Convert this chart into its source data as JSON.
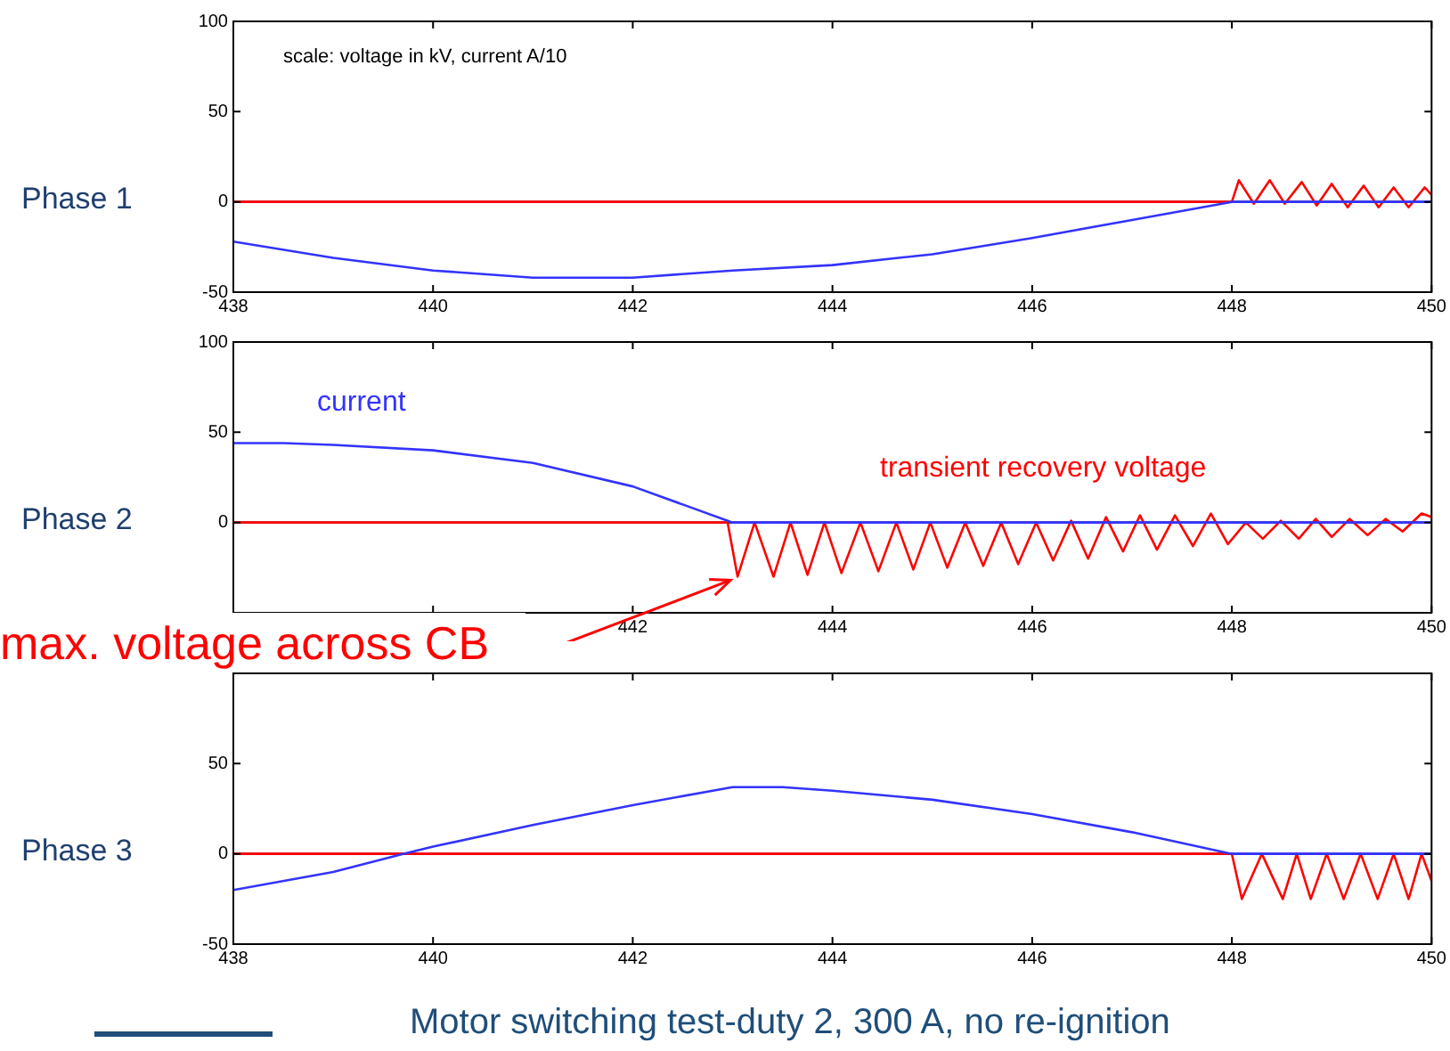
{
  "chart_data": [
    {
      "type": "line",
      "ylabel": "Phase 1",
      "xlim": [
        438,
        450
      ],
      "xticks": [
        438,
        440,
        442,
        444,
        446,
        448,
        450
      ],
      "ylim": [
        -50,
        100
      ],
      "yticks": [
        -50,
        0,
        50,
        100
      ],
      "legend": false,
      "grid": false,
      "marker": "none",
      "annotations": [
        "scale: voltage in kV, current A/10"
      ],
      "ref_lines": [
        {
          "axis": "y",
          "value": 0,
          "color": "#000000"
        }
      ],
      "series": [
        {
          "color": "#3333ff",
          "x": [
            438,
            439,
            440,
            441,
            442,
            443,
            444,
            445,
            446,
            447,
            448,
            450
          ],
          "values": [
            -22,
            -31,
            -38,
            -42,
            -42,
            -38,
            -35,
            -29,
            -20,
            -10,
            0,
            0
          ]
        },
        {
          "color": "#ff0000",
          "x": [
            438,
            448,
            448.07,
            448.22,
            448.38,
            448.53,
            448.7,
            448.85,
            449.0,
            449.16,
            449.32,
            449.47,
            449.62,
            449.77,
            449.93,
            450
          ],
          "values": [
            0,
            0,
            12,
            -1,
            12,
            -1,
            11,
            -2,
            10,
            -3,
            9,
            -3,
            8,
            -3,
            8,
            4
          ]
        }
      ]
    },
    {
      "type": "line",
      "ylabel": "Phase 2",
      "xlim": [
        438,
        450
      ],
      "xticks": [
        {
          "value": 438,
          "label": null
        },
        {
          "value": 440,
          "label": null
        },
        442,
        444,
        446,
        448,
        450
      ],
      "ylim": [
        -50,
        100
      ],
      "yticks": [
        {
          "value": -50,
          "label": null
        },
        0,
        50,
        100
      ],
      "legend": false,
      "grid": false,
      "marker": "none",
      "annotations": [
        {
          "text": "max. voltage across CB",
          "x": 443.05,
          "y": -30
        }
      ],
      "ref_lines": [
        {
          "axis": "y",
          "value": 0,
          "color": "#000000"
        }
      ],
      "series": [
        {
          "name": "current",
          "color": "#3333ff",
          "x": [
            438,
            438.5,
            439,
            440,
            441,
            442,
            442.5,
            443,
            450
          ],
          "values": [
            44,
            44,
            43,
            40,
            33,
            20,
            10,
            0,
            0
          ]
        },
        {
          "name": "transient recovery voltage",
          "color": "#ff0000",
          "x": [
            438,
            442.95,
            443.05,
            443.22,
            443.41,
            443.58,
            443.75,
            443.92,
            444.09,
            444.28,
            444.46,
            444.64,
            444.81,
            444.98,
            445.15,
            445.33,
            445.51,
            445.69,
            445.86,
            446.04,
            446.21,
            446.39,
            446.56,
            446.74,
            446.91,
            447.08,
            447.25,
            447.43,
            447.61,
            447.79,
            447.96,
            448.14,
            448.31,
            448.49,
            448.67,
            448.84,
            449.0,
            449.18,
            449.36,
            449.54,
            449.71,
            449.9,
            450
          ],
          "values": [
            0,
            0,
            -30,
            0,
            -30,
            0,
            -29,
            0,
            -28,
            0,
            -27,
            0,
            -26,
            0,
            -25,
            0,
            -24,
            0,
            -23,
            0,
            -21,
            1,
            -20,
            3,
            -16,
            4,
            -15,
            4,
            -13,
            5,
            -12,
            0,
            -9,
            1,
            -9,
            2,
            -8,
            2,
            -7,
            2,
            -5,
            5,
            3
          ]
        }
      ]
    },
    {
      "type": "line",
      "ylabel": "Phase 3",
      "xlim": [
        438,
        450
      ],
      "xticks": [
        438,
        440,
        442,
        444,
        446,
        448,
        450
      ],
      "ylim": [
        -50,
        100
      ],
      "yticks": [
        -50,
        0,
        50,
        {
          "value": 100,
          "label": null
        }
      ],
      "legend": false,
      "grid": false,
      "marker": "none",
      "annotations": [
        "Motor switching test-duty 2, 300 A, no re-ignition"
      ],
      "ref_lines": [
        {
          "axis": "y",
          "value": 0,
          "color": "#000000"
        }
      ],
      "series": [
        {
          "color": "#3333ff",
          "x": [
            438,
            439,
            439.7,
            440,
            441,
            442,
            443,
            443.5,
            444,
            445,
            446,
            447,
            448,
            450
          ],
          "values": [
            -20,
            -10,
            0,
            4,
            16,
            27,
            37,
            37,
            35,
            30,
            22,
            12,
            0,
            0
          ]
        },
        {
          "color": "#ff0000",
          "x": [
            438,
            448,
            448.1,
            448.3,
            448.51,
            448.65,
            448.79,
            448.95,
            449.12,
            449.29,
            449.46,
            449.62,
            449.77,
            449.9,
            450
          ],
          "values": [
            0,
            0,
            -25,
            0,
            -25,
            0,
            -25,
            0,
            -25,
            0,
            -25,
            0,
            -25,
            0,
            -15
          ]
        }
      ]
    }
  ]
}
